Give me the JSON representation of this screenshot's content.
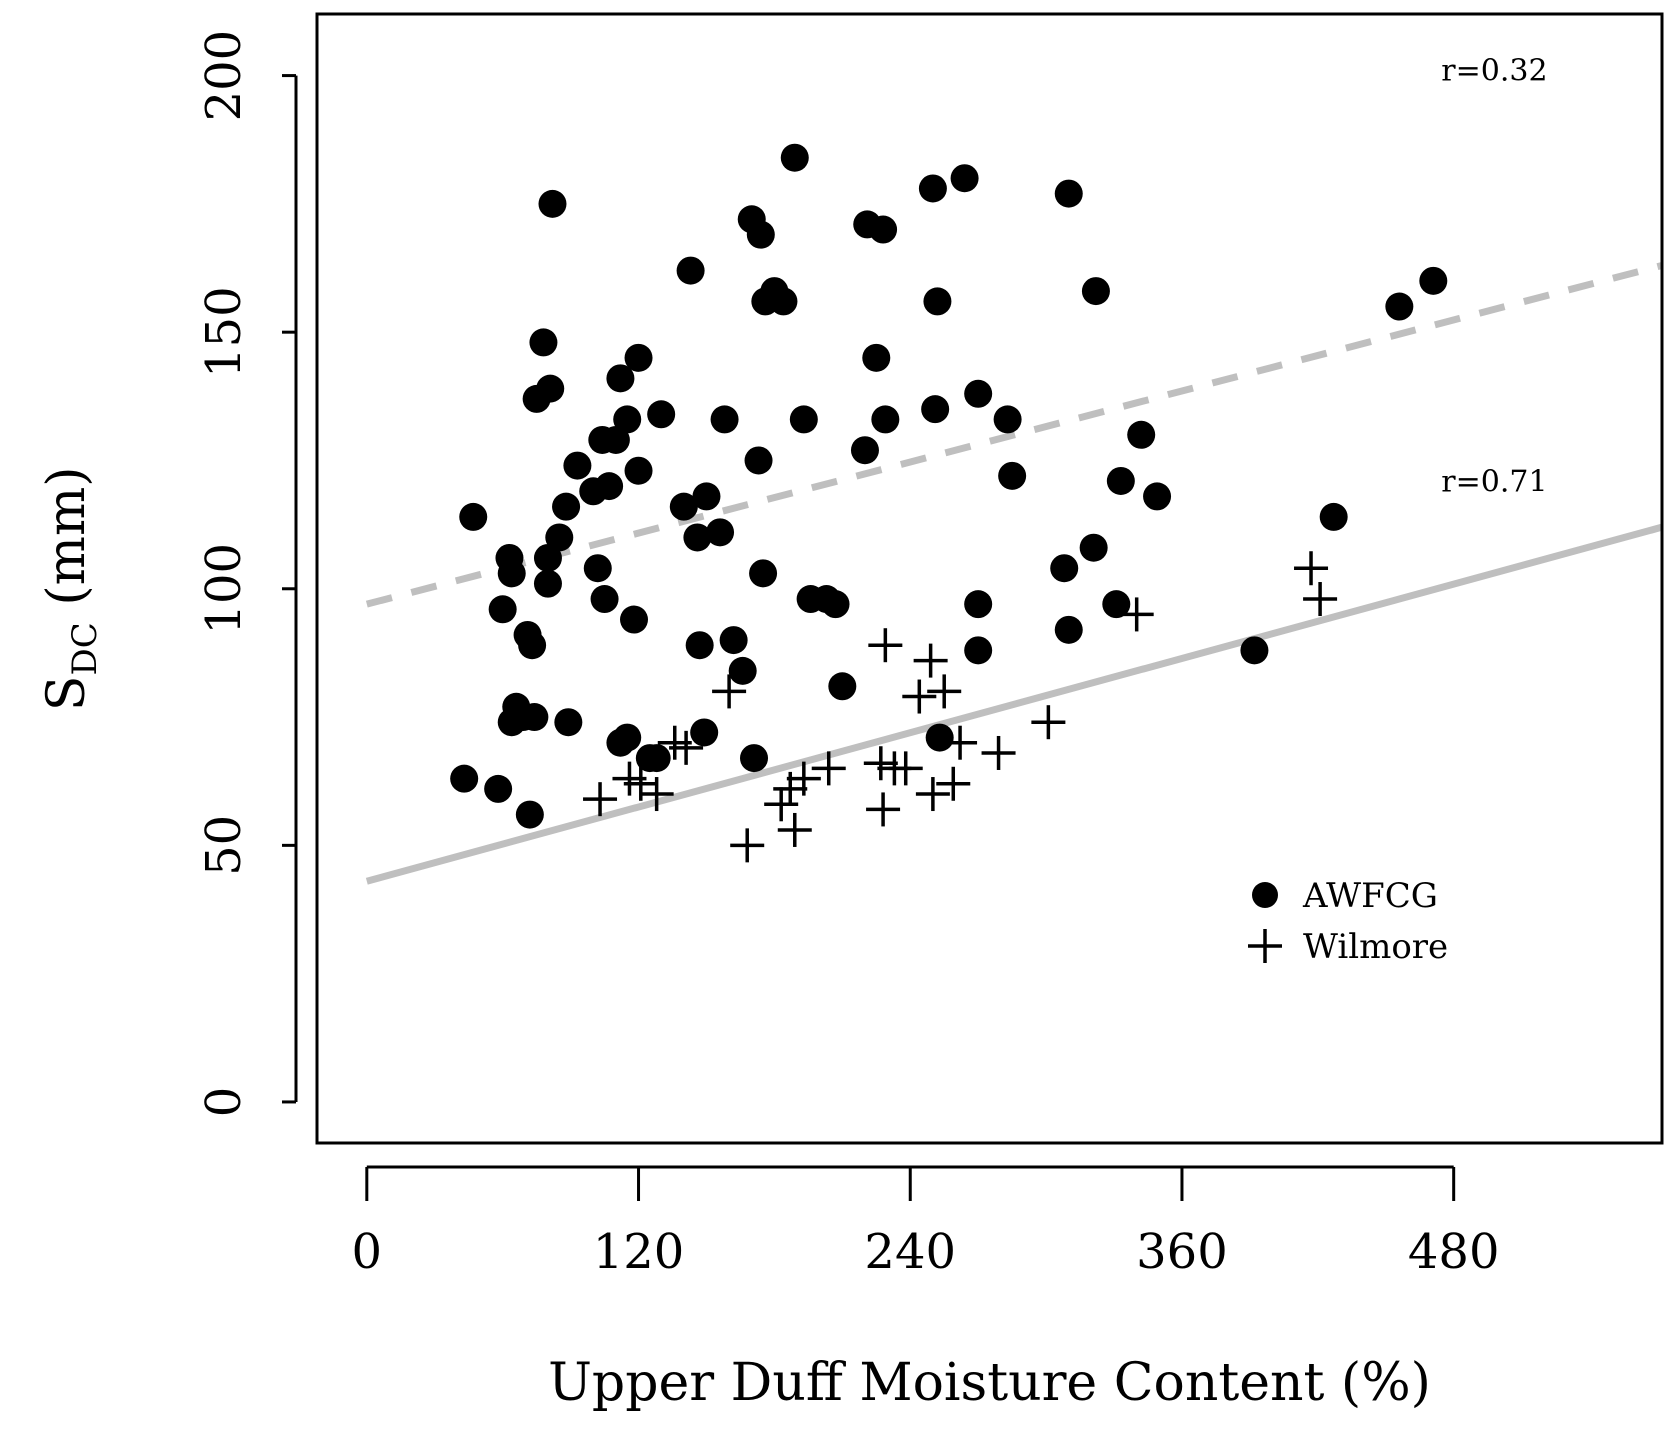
{
  "chart_data": {
    "type": "scatter",
    "title": "",
    "xlabel": "Upper Duff Moisture Content (%)",
    "ylabel": {
      "main": "S",
      "sub": "DC",
      "rest": " (mm)"
    },
    "xlim": [
      -22,
      572
    ],
    "ylim": [
      -8,
      212
    ],
    "x_ticks": [
      0,
      120,
      240,
      360,
      480
    ],
    "y_ticks": [
      0,
      50,
      100,
      150,
      200
    ],
    "grid": false,
    "legend_position": "lower-right",
    "series": [
      {
        "name": "AWFCG",
        "marker": "filled-circle",
        "color": "#000000",
        "points": [
          [
            47,
            114
          ],
          [
            43,
            63
          ],
          [
            58,
            61
          ],
          [
            60,
            96
          ],
          [
            63,
            106
          ],
          [
            64,
            103
          ],
          [
            64,
            74
          ],
          [
            66,
            77
          ],
          [
            69,
            75
          ],
          [
            71,
            91
          ],
          [
            73,
            89
          ],
          [
            74,
            75
          ],
          [
            72,
            56
          ],
          [
            75,
            137
          ],
          [
            78,
            148
          ],
          [
            80,
            101
          ],
          [
            80,
            106
          ],
          [
            81,
            139
          ],
          [
            82,
            175
          ],
          [
            85,
            110
          ],
          [
            88,
            116
          ],
          [
            89,
            74
          ],
          [
            93,
            124
          ],
          [
            100,
            119
          ],
          [
            102,
            104
          ],
          [
            104,
            129
          ],
          [
            105,
            98
          ],
          [
            107,
            120
          ],
          [
            110,
            129
          ],
          [
            112,
            70
          ],
          [
            112,
            141
          ],
          [
            115,
            71
          ],
          [
            115,
            133
          ],
          [
            118,
            94
          ],
          [
            120,
            123
          ],
          [
            120,
            145
          ],
          [
            125,
            67
          ],
          [
            128,
            67
          ],
          [
            130,
            134
          ],
          [
            140,
            116
          ],
          [
            143,
            162
          ],
          [
            146,
            110
          ],
          [
            147,
            89
          ],
          [
            149,
            72
          ],
          [
            150,
            118
          ],
          [
            156,
            111
          ],
          [
            158,
            133
          ],
          [
            162,
            90
          ],
          [
            166,
            84
          ],
          [
            170,
            172
          ],
          [
            171,
            67
          ],
          [
            173,
            125
          ],
          [
            174,
            169
          ],
          [
            175,
            103
          ],
          [
            176,
            156
          ],
          [
            180,
            158
          ],
          [
            184,
            156
          ],
          [
            189,
            184
          ],
          [
            193,
            133
          ],
          [
            196,
            98
          ],
          [
            203,
            98
          ],
          [
            207,
            97
          ],
          [
            210,
            81
          ],
          [
            220,
            127
          ],
          [
            221,
            171
          ],
          [
            225,
            145
          ],
          [
            228,
            170
          ],
          [
            229,
            133
          ],
          [
            250,
            178
          ],
          [
            251,
            135
          ],
          [
            252,
            156
          ],
          [
            253,
            71
          ],
          [
            264,
            180
          ],
          [
            270,
            138
          ],
          [
            270,
            97
          ],
          [
            270,
            88
          ],
          [
            283,
            133
          ],
          [
            285,
            122
          ],
          [
            308,
            104
          ],
          [
            310,
            92
          ],
          [
            310,
            177
          ],
          [
            321,
            108
          ],
          [
            322,
            158
          ],
          [
            331,
            97
          ],
          [
            333,
            121
          ],
          [
            342,
            130
          ],
          [
            349,
            118
          ],
          [
            392,
            88
          ],
          [
            427,
            114
          ],
          [
            456,
            155
          ],
          [
            471,
            160
          ]
        ]
      },
      {
        "name": "Wilmore",
        "marker": "plus",
        "color": "#000000",
        "points": [
          [
            103,
            59
          ],
          [
            116,
            63
          ],
          [
            121,
            62
          ],
          [
            128,
            60
          ],
          [
            136,
            70
          ],
          [
            141,
            69
          ],
          [
            160,
            80
          ],
          [
            168,
            50
          ],
          [
            183,
            58
          ],
          [
            187,
            61
          ],
          [
            189,
            53
          ],
          [
            193,
            63
          ],
          [
            204,
            65
          ],
          [
            227,
            66
          ],
          [
            228,
            57
          ],
          [
            229,
            89
          ],
          [
            233,
            65
          ],
          [
            238,
            65
          ],
          [
            244,
            79
          ],
          [
            249,
            86
          ],
          [
            250,
            60
          ],
          [
            255,
            80
          ],
          [
            259,
            62
          ],
          [
            262,
            70
          ],
          [
            279,
            68
          ],
          [
            301,
            74
          ],
          [
            340,
            95
          ],
          [
            417,
            104
          ],
          [
            421,
            98
          ]
        ]
      }
    ],
    "fit_lines": [
      {
        "series": "AWFCG",
        "style": "dashed",
        "color": "#bfbfbf",
        "x": [
          0,
          572
        ],
        "y": [
          97,
          163
        ],
        "label": "r=0.32",
        "label_x": 498,
        "label_y": 199
      },
      {
        "series": "Wilmore",
        "style": "solid",
        "color": "#bfbfbf",
        "x": [
          0,
          572
        ],
        "y": [
          43,
          112
        ],
        "label": "r=0.71",
        "label_x": 498,
        "label_y": 119
      }
    ]
  }
}
